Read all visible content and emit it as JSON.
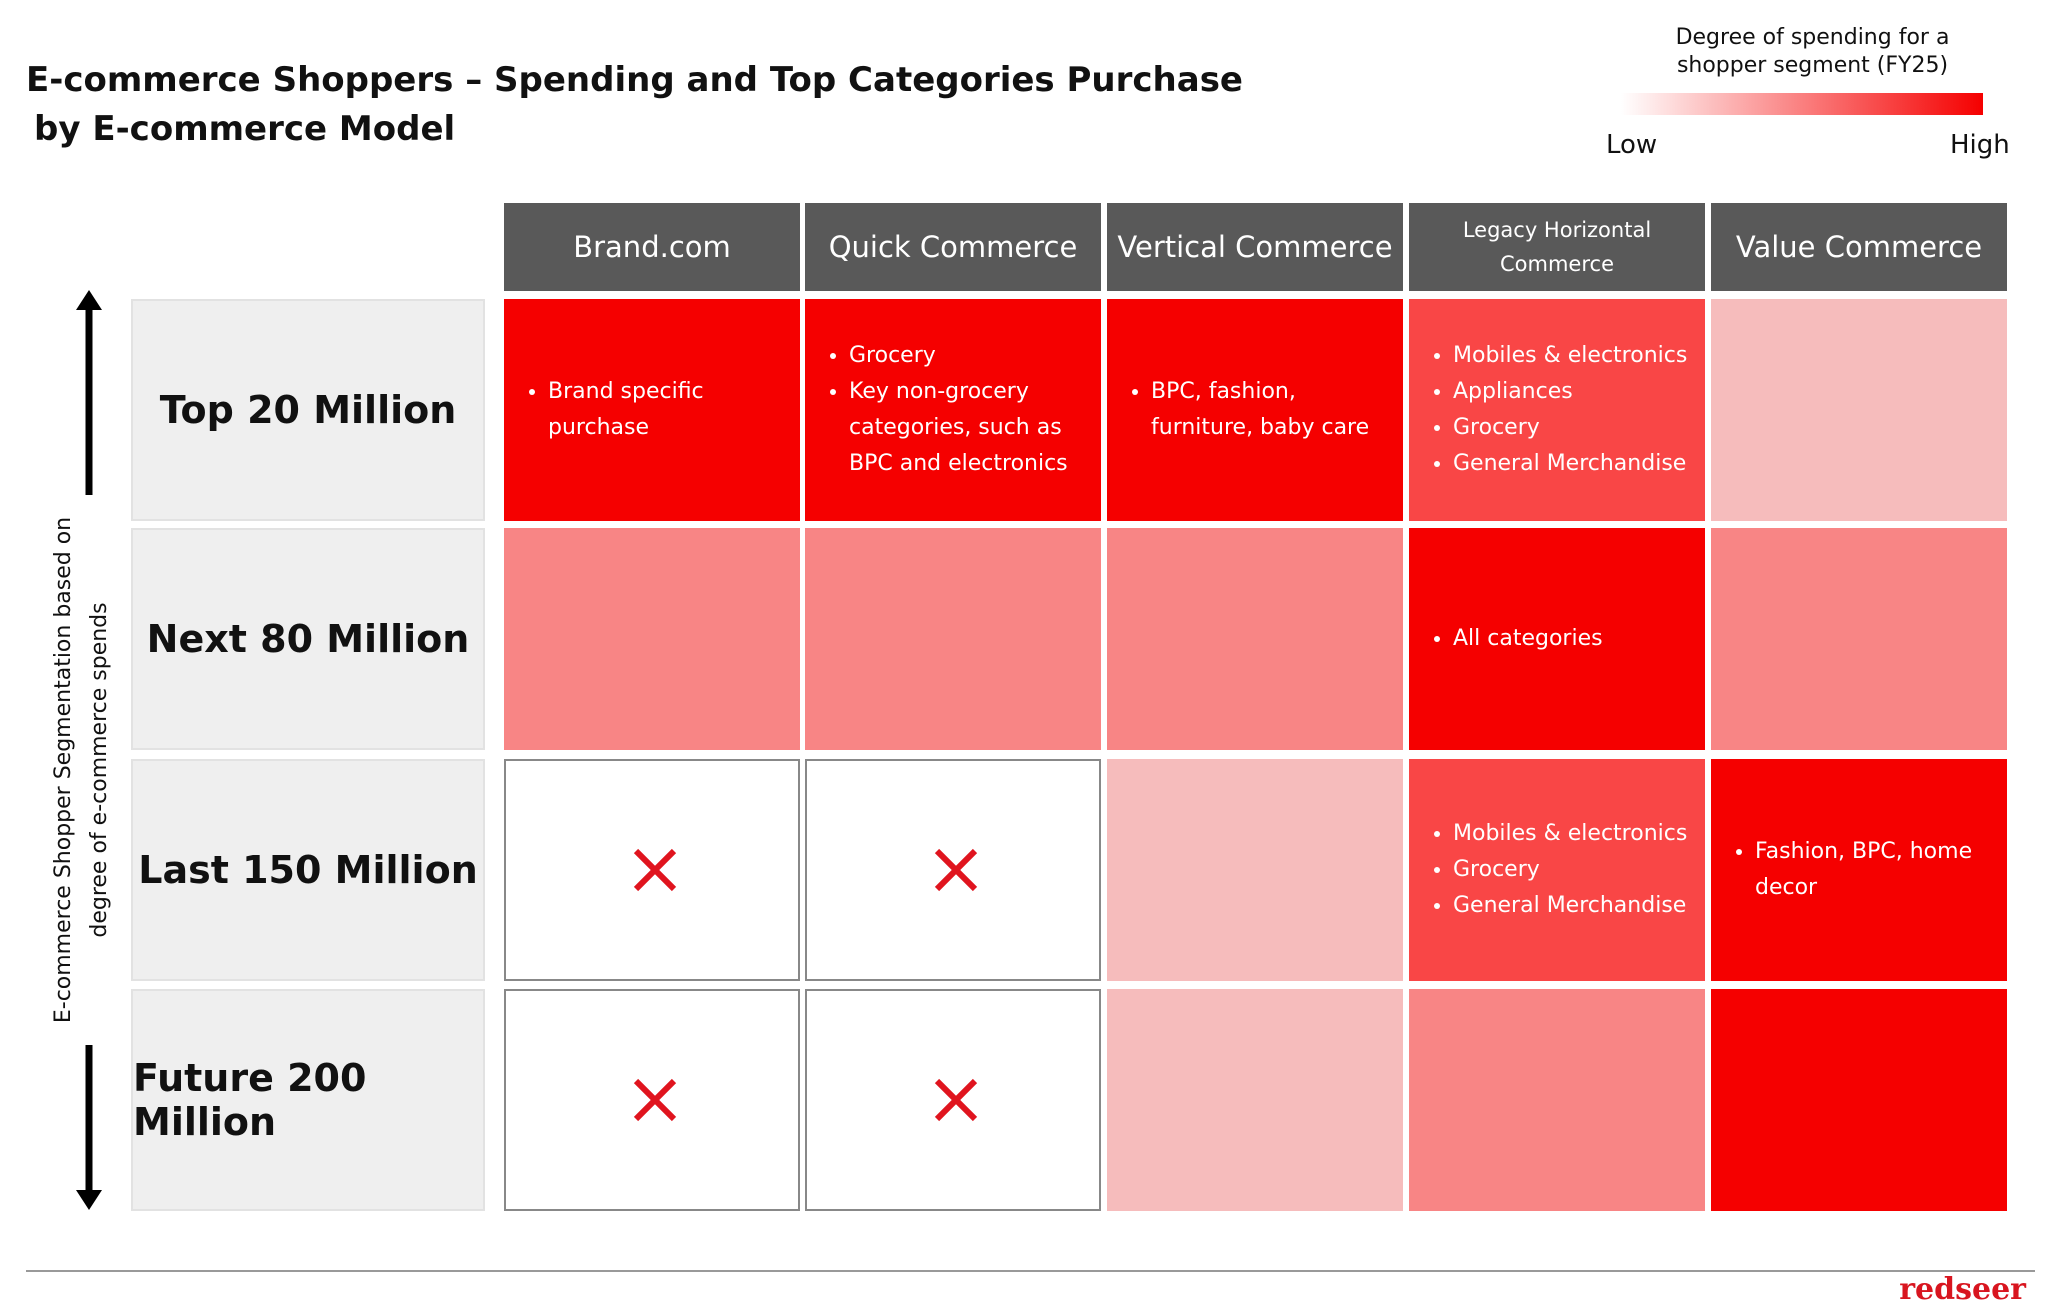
{
  "header": {
    "title_lines": [
      "E-commerce Shoppers – Spending and Top Categories Purchase",
      "by E-commerce Model"
    ]
  },
  "legend": {
    "title": "Degree of spending for a shopper segment (FY25)",
    "low": "Low",
    "high": "High",
    "colors": [
      "#ffffff",
      "#f50000"
    ]
  },
  "axis_label": "E-commerce Shopper Segmentation based on degree of e-commerce spends",
  "table": {
    "header_color": "#595959",
    "label_color": "#efefef",
    "columns": [
      "Brand.com",
      "Quick Commerce",
      "Vertical Commerce",
      "Legacy Horizontal Commerce",
      "Value Commerce"
    ],
    "rows": [
      {
        "label": "Top 20 Million",
        "cells": [
          {
            "color": "#f50000",
            "bullets": [
              "Brand specific purchase"
            ]
          },
          {
            "color": "#f50000",
            "bullets": [
              "Grocery",
              "Key non-grocery categories, such as BPC and electronics"
            ]
          },
          {
            "color": "#f50000",
            "bullets": [
              "BPC, fashion, furniture, baby care"
            ]
          },
          {
            "color": "#f94646",
            "bullets": [
              "Mobiles & electronics",
              "Appliances",
              "Grocery",
              "General Merchandise"
            ]
          },
          {
            "color": "#f6bcbc"
          }
        ]
      },
      {
        "label": "Next 80 Million",
        "cells": [
          {
            "color": "#f88585"
          },
          {
            "color": "#f88585"
          },
          {
            "color": "#f88585"
          },
          {
            "color": "#f50000",
            "bullets": [
              "All categories"
            ]
          },
          {
            "color": "#f88585"
          }
        ]
      },
      {
        "label": "Last 150 Million",
        "cells": [
          {
            "color": "#ffffff",
            "excluded": true
          },
          {
            "color": "#ffffff",
            "excluded": true
          },
          {
            "color": "#f6bcbc"
          },
          {
            "color": "#f94646",
            "bullets": [
              "Mobiles & electronics",
              "Grocery",
              "General Merchandise"
            ]
          },
          {
            "color": "#f50000",
            "bullets": [
              "Fashion, BPC, home decor"
            ]
          }
        ]
      },
      {
        "label": "Future 200 Million",
        "cells": [
          {
            "color": "#ffffff",
            "excluded": true
          },
          {
            "color": "#ffffff",
            "excluded": true
          },
          {
            "color": "#f6bcbc"
          },
          {
            "color": "#f88585"
          },
          {
            "color": "#f50000"
          }
        ]
      }
    ]
  },
  "footer": {
    "logo": "redseer"
  }
}
